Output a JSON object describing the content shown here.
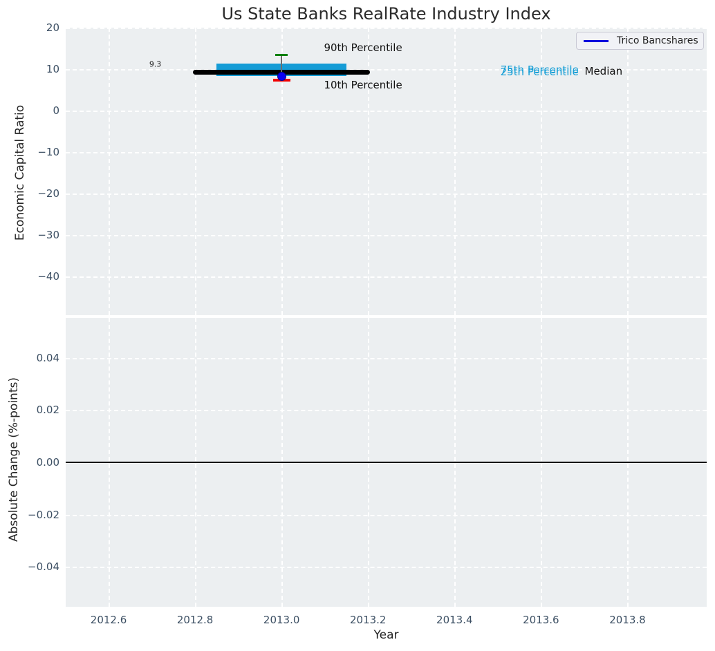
{
  "figure": {
    "title": "Us State Banks RealRate Industry Index"
  },
  "legend": {
    "items": [
      {
        "label": "Trico Bancshares",
        "color": "#0000dd"
      }
    ]
  },
  "colors": {
    "plot_bg": "#eceff1",
    "grid": "#ffffff",
    "tick_label": "#3c4f63",
    "axis_label": "#262626",
    "title": "#2b2b2b",
    "median_line": "#000000",
    "iqr_bar": "#159cd6",
    "p90_cap": "#008002",
    "p10_cap": "#f20000",
    "company_dot": "#0b00f0",
    "whisker": "#6e6e6e",
    "zero_line": "#000000",
    "cyan_text": "#189fd6",
    "annotation_text": "#111111"
  },
  "chart_data": {
    "type": "percentile-box-timeseries",
    "title": "Us State Banks RealRate Industry Index",
    "xlabel": "Year",
    "xlim": [
      2012.5008,
      2013.9832
    ],
    "x_ticks": [
      {
        "v": 2012.6,
        "label": "2012.6"
      },
      {
        "v": 2012.8,
        "label": "2012.8"
      },
      {
        "v": 2013.0,
        "label": "2013.0"
      },
      {
        "v": 2013.2,
        "label": "2013.2"
      },
      {
        "v": 2013.4,
        "label": "2013.4"
      },
      {
        "v": 2013.6,
        "label": "2013.6"
      },
      {
        "v": 2013.8,
        "label": "2013.8"
      }
    ],
    "panels": [
      {
        "id": "top",
        "ylabel": "Economic Capital Ratio",
        "ylim": [
          -49.33,
          20
        ],
        "grid": true,
        "y_ticks": [
          {
            "v": 20,
            "label": "20"
          },
          {
            "v": 10,
            "label": "10"
          },
          {
            "v": 0,
            "label": "0"
          },
          {
            "v": -10,
            "label": "−10"
          },
          {
            "v": -20,
            "label": "−20"
          },
          {
            "v": -30,
            "label": "−30"
          },
          {
            "v": -40,
            "label": "−40"
          }
        ],
        "data": {
          "year": 2013.0,
          "median": 9.3,
          "p90": 13.4,
          "p75": 11.3,
          "p25": 8.3,
          "p10": 7.3,
          "median_span": [
            2012.8,
            2013.2
          ],
          "box_span": [
            2012.85,
            2013.15
          ],
          "company": {
            "name": "Trico Bancshares",
            "value": 8.3
          }
        },
        "annotations": [
          {
            "text": "9.3",
            "x": 2012.694,
            "y": 11.2,
            "size": 11,
            "color": "#1a1a1a"
          },
          {
            "text": "90th Percentile",
            "x": 2013.098,
            "y": 15.2,
            "size": 15,
            "color": "#111111"
          },
          {
            "text": "10th Percentile",
            "x": 2013.098,
            "y": 6.2,
            "size": 15,
            "color": "#111111"
          },
          {
            "text": "75th Percentile",
            "x": 2013.506,
            "y": 9.85,
            "size": 15,
            "color": "#189fd6"
          },
          {
            "text": "25th Percentile",
            "x": 2013.506,
            "y": 9.32,
            "size": 15,
            "color": "#189fd6"
          },
          {
            "text": "Median",
            "x": 2013.701,
            "y": 9.5,
            "size": 15,
            "color": "#111111"
          }
        ]
      },
      {
        "id": "bottom",
        "ylabel": "Absolute Change (%-points)",
        "ylim": [
          -0.0552,
          0.0552
        ],
        "grid": true,
        "zero_line": 0,
        "y_ticks": [
          {
            "v": 0.04,
            "label": "0.04"
          },
          {
            "v": 0.02,
            "label": "0.02"
          },
          {
            "v": 0,
            "label": "0.00"
          },
          {
            "v": -0.02,
            "label": "−0.02"
          },
          {
            "v": -0.04,
            "label": "−0.04"
          }
        ]
      }
    ]
  }
}
